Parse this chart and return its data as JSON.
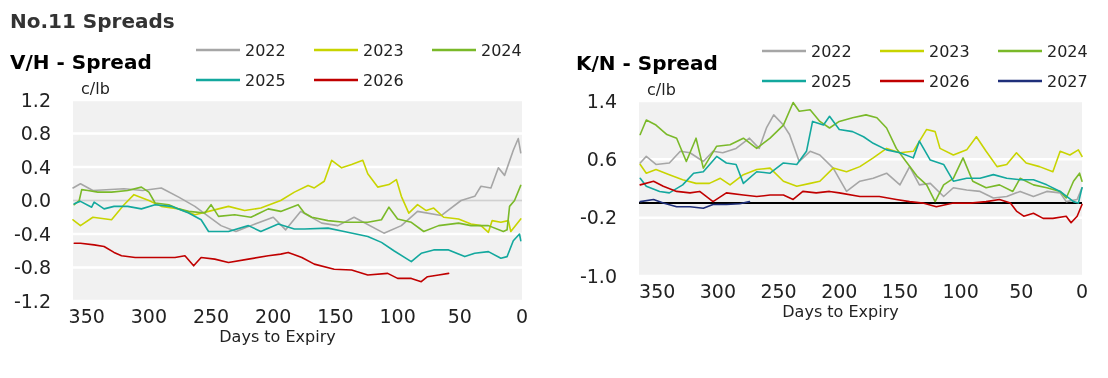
{
  "chart_data": [
    {
      "type": "line",
      "annotations": [
        "No.11 Spreads"
      ],
      "title": "V/H - Spread",
      "ylabel": "c/lb",
      "xlabel": "Days to Expiry",
      "xlim": [
        361,
        0
      ],
      "xticks": [
        350,
        300,
        250,
        200,
        150,
        100,
        50,
        0
      ],
      "ylim": [
        -1.2,
        1.2
      ],
      "yticks": [
        1.2,
        0.8,
        0.4,
        {
          "value": 0,
          "label": "0.0"
        },
        -0.4,
        -0.8,
        -1.2
      ],
      "grid": "y",
      "legend": "top",
      "ref_lines": [
        {
          "axis": "y",
          "value": 0,
          "color": "#d0d0d0"
        }
      ],
      "series": [
        {
          "name": "2022",
          "color": "#a6a6a6",
          "x": [
            361,
            355,
            345,
            320,
            305,
            290,
            276,
            263,
            242,
            230,
            218,
            200,
            190,
            178,
            161,
            148,
            135,
            111,
            97,
            84,
            65,
            49,
            38,
            33,
            25,
            19,
            14,
            7,
            3,
            1
          ],
          "values": [
            0.15,
            0.2,
            0.12,
            0.14,
            0.12,
            0.15,
            0.04,
            -0.07,
            -0.3,
            -0.37,
            -0.3,
            -0.2,
            -0.35,
            -0.13,
            -0.27,
            -0.3,
            -0.2,
            -0.39,
            -0.3,
            -0.13,
            -0.18,
            0.0,
            0.05,
            0.17,
            0.15,
            0.39,
            0.3,
            0.6,
            0.74,
            0.57
          ]
        },
        {
          "name": "2023",
          "color": "#c8d400",
          "x": [
            361,
            355,
            345,
            330,
            320,
            312,
            300,
            290,
            276,
            263,
            252,
            236,
            223,
            210,
            194,
            183,
            172,
            167,
            159,
            153,
            145,
            137,
            128,
            124,
            116,
            107,
            101,
            97,
            91,
            84,
            77,
            71,
            63,
            51,
            41,
            33,
            27,
            24,
            17,
            11,
            9,
            1
          ],
          "values": [
            -0.23,
            -0.3,
            -0.2,
            -0.23,
            -0.05,
            0.07,
            0.0,
            -0.07,
            -0.1,
            -0.17,
            -0.13,
            -0.07,
            -0.12,
            -0.09,
            0.0,
            0.1,
            0.18,
            0.15,
            0.23,
            0.48,
            0.39,
            0.43,
            0.48,
            0.32,
            0.16,
            0.19,
            0.25,
            0.05,
            -0.15,
            -0.05,
            -0.12,
            -0.09,
            -0.2,
            -0.22,
            -0.28,
            -0.3,
            -0.38,
            -0.24,
            -0.26,
            -0.24,
            -0.37,
            -0.22
          ]
        },
        {
          "name": "2024",
          "color": "#7ab929",
          "x": [
            360,
            356,
            354,
            349,
            341,
            330,
            317,
            306,
            300,
            295,
            284,
            276,
            268,
            255,
            250,
            244,
            231,
            218,
            204,
            194,
            180,
            175,
            169,
            156,
            143,
            124,
            113,
            107,
            100,
            89,
            79,
            67,
            51,
            41,
            27,
            15,
            12,
            10,
            6,
            1
          ],
          "values": [
            -0.05,
            0.0,
            0.13,
            0.12,
            0.1,
            0.1,
            0.12,
            0.16,
            0.1,
            -0.03,
            -0.05,
            -0.1,
            -0.13,
            -0.15,
            -0.05,
            -0.19,
            -0.17,
            -0.2,
            -0.1,
            -0.13,
            -0.05,
            -0.15,
            -0.2,
            -0.24,
            -0.26,
            -0.26,
            -0.23,
            -0.08,
            -0.22,
            -0.26,
            -0.37,
            -0.3,
            -0.27,
            -0.3,
            -0.3,
            -0.37,
            -0.35,
            -0.07,
            0.0,
            0.18
          ]
        },
        {
          "name": "2025",
          "color": "#13a89e",
          "x": [
            360,
            355,
            346,
            344,
            336,
            328,
            317,
            306,
            295,
            282,
            268,
            258,
            252,
            236,
            220,
            210,
            196,
            183,
            175,
            156,
            143,
            124,
            113,
            103,
            89,
            81,
            71,
            59,
            46,
            38,
            27,
            17,
            12,
            7,
            2,
            1
          ],
          "values": [
            -0.04,
            -0.01,
            -0.08,
            -0.02,
            -0.1,
            -0.07,
            -0.07,
            -0.1,
            -0.05,
            -0.07,
            -0.15,
            -0.23,
            -0.37,
            -0.37,
            -0.3,
            -0.37,
            -0.28,
            -0.34,
            -0.34,
            -0.33,
            -0.37,
            -0.43,
            -0.5,
            -0.6,
            -0.73,
            -0.63,
            -0.59,
            -0.59,
            -0.67,
            -0.63,
            -0.61,
            -0.69,
            -0.67,
            -0.48,
            -0.4,
            -0.48
          ]
        },
        {
          "name": "2026",
          "color": "#c00000",
          "x": [
            360,
            355,
            344,
            336,
            328,
            322,
            311,
            300,
            290,
            279,
            271,
            264,
            258,
            247,
            236,
            220,
            204,
            194,
            188,
            177,
            167,
            151,
            137,
            124,
            108,
            100,
            89,
            81,
            76,
            67,
            59
          ],
          "values": [
            -0.51,
            -0.51,
            -0.53,
            -0.55,
            -0.62,
            -0.66,
            -0.68,
            -0.68,
            -0.68,
            -0.68,
            -0.66,
            -0.78,
            -0.68,
            -0.7,
            -0.74,
            -0.7,
            -0.66,
            -0.64,
            -0.62,
            -0.68,
            -0.76,
            -0.82,
            -0.83,
            -0.89,
            -0.87,
            -0.93,
            -0.93,
            -0.97,
            -0.91,
            -0.89,
            -0.87
          ]
        }
      ]
    },
    {
      "type": "line",
      "title": "K/N - Spread",
      "ylabel": "c/lb",
      "xlabel": "Days to Expiry",
      "xlim": [
        365,
        0
      ],
      "xticks": [
        350,
        300,
        250,
        200,
        150,
        100,
        50,
        0
      ],
      "ylim": [
        -1.0,
        1.4
      ],
      "yticks": [
        1.4,
        0.6,
        -0.2,
        {
          "value": -1,
          "label": "-1.0"
        }
      ],
      "grid": "y",
      "legend": "top",
      "ref_lines": [
        {
          "axis": "y",
          "value": 0,
          "color": "#000000"
        }
      ],
      "series": [
        {
          "name": "2022",
          "color": "#a6a6a6",
          "x": [
            364,
            359,
            351,
            340,
            331,
            323,
            312,
            304,
            296,
            285,
            274,
            266,
            260,
            254,
            246,
            241,
            233,
            224,
            216,
            205,
            194,
            183,
            172,
            161,
            150,
            142,
            134,
            125,
            114,
            106,
            95,
            84,
            73,
            62,
            51,
            40,
            29,
            18,
            13,
            4,
            0
          ],
          "values": [
            0.55,
            0.64,
            0.53,
            0.55,
            0.71,
            0.69,
            0.57,
            0.71,
            0.69,
            0.75,
            0.89,
            0.75,
            1.03,
            1.21,
            1.07,
            0.94,
            0.57,
            0.71,
            0.66,
            0.48,
            0.16,
            0.3,
            0.34,
            0.41,
            0.25,
            0.5,
            0.25,
            0.27,
            0.09,
            0.21,
            0.18,
            0.16,
            0.07,
            0.09,
            0.16,
            0.09,
            0.16,
            0.14,
            0.02,
            0.05,
            0.21
          ]
        },
        {
          "name": "2023",
          "color": "#c8d400",
          "x": [
            364,
            359,
            351,
            340,
            329,
            318,
            307,
            298,
            290,
            279,
            268,
            257,
            246,
            235,
            224,
            216,
            205,
            194,
            183,
            172,
            161,
            150,
            139,
            128,
            121,
            117,
            106,
            95,
            87,
            79,
            70,
            62,
            54,
            46,
            35,
            24,
            18,
            10,
            3,
            0
          ],
          "values": [
            0.53,
            0.41,
            0.46,
            0.39,
            0.32,
            0.27,
            0.27,
            0.34,
            0.25,
            0.39,
            0.46,
            0.48,
            0.3,
            0.23,
            0.27,
            0.3,
            0.48,
            0.43,
            0.5,
            0.62,
            0.75,
            0.69,
            0.71,
            1.01,
            0.98,
            0.75,
            0.66,
            0.73,
            0.91,
            0.71,
            0.5,
            0.53,
            0.69,
            0.55,
            0.5,
            0.43,
            0.71,
            0.66,
            0.73,
            0.64
          ]
        },
        {
          "name": "2024",
          "color": "#7ab929",
          "x": [
            364,
            359,
            351,
            342,
            334,
            326,
            318,
            312,
            301,
            290,
            279,
            268,
            257,
            246,
            238,
            233,
            224,
            216,
            208,
            200,
            189,
            178,
            169,
            161,
            153,
            145,
            136,
            128,
            121,
            114,
            106,
            98,
            90,
            79,
            68,
            57,
            51,
            40,
            29,
            18,
            13,
            7,
            2,
            0
          ],
          "values": [
            0.94,
            1.14,
            1.07,
            0.94,
            0.89,
            0.57,
            0.89,
            0.48,
            0.78,
            0.8,
            0.89,
            0.75,
            0.89,
            1.07,
            1.38,
            1.26,
            1.28,
            1.12,
            1.03,
            1.12,
            1.17,
            1.21,
            1.17,
            1.03,
            0.75,
            0.57,
            0.37,
            0.25,
            0.02,
            0.25,
            0.34,
            0.62,
            0.3,
            0.21,
            0.25,
            0.16,
            0.34,
            0.25,
            0.21,
            0.16,
            0.07,
            0.3,
            0.41,
            0.3
          ]
        },
        {
          "name": "2025",
          "color": "#13a89e",
          "x": [
            364,
            359,
            348,
            340,
            329,
            320,
            312,
            301,
            293,
            285,
            279,
            268,
            257,
            246,
            235,
            227,
            222,
            213,
            208,
            200,
            189,
            180,
            172,
            161,
            150,
            139,
            134,
            125,
            114,
            106,
            95,
            84,
            73,
            62,
            51,
            40,
            29,
            18,
            7,
            3,
            0
          ],
          "values": [
            0.34,
            0.23,
            0.16,
            0.14,
            0.25,
            0.41,
            0.43,
            0.64,
            0.55,
            0.53,
            0.27,
            0.43,
            0.41,
            0.55,
            0.53,
            0.71,
            1.12,
            1.07,
            1.19,
            1.01,
            0.98,
            0.91,
            0.82,
            0.73,
            0.69,
            0.62,
            0.85,
            0.59,
            0.53,
            0.3,
            0.34,
            0.34,
            0.39,
            0.34,
            0.32,
            0.32,
            0.25,
            0.16,
            0.02,
            0.0,
            0.21
          ]
        },
        {
          "name": "2026",
          "color": "#c00000",
          "x": [
            364,
            353,
            345,
            334,
            323,
            315,
            304,
            293,
            279,
            268,
            257,
            246,
            238,
            230,
            219,
            208,
            200,
            183,
            167,
            153,
            142,
            131,
            120,
            106,
            92,
            79,
            68,
            59,
            54,
            48,
            40,
            32,
            24,
            13,
            9,
            4,
            0
          ],
          "values": [
            0.25,
            0.3,
            0.23,
            0.16,
            0.14,
            0.16,
            0.02,
            0.14,
            0.11,
            0.09,
            0.11,
            0.11,
            0.05,
            0.16,
            0.14,
            0.16,
            0.14,
            0.09,
            0.09,
            0.05,
            0.02,
            0.0,
            -0.05,
            0.0,
            0.0,
            0.02,
            0.05,
            0.0,
            -0.11,
            -0.18,
            -0.14,
            -0.21,
            -0.21,
            -0.18,
            -0.27,
            -0.18,
            -0.02
          ]
        },
        {
          "name": "2027",
          "color": "#1f2f7a",
          "x": [
            364,
            353,
            345,
            334,
            323,
            312,
            304,
            293,
            282,
            274
          ],
          "values": [
            0.02,
            0.05,
            0.0,
            -0.05,
            -0.05,
            -0.07,
            -0.02,
            -0.02,
            -0.01,
            0.02
          ]
        }
      ]
    }
  ]
}
